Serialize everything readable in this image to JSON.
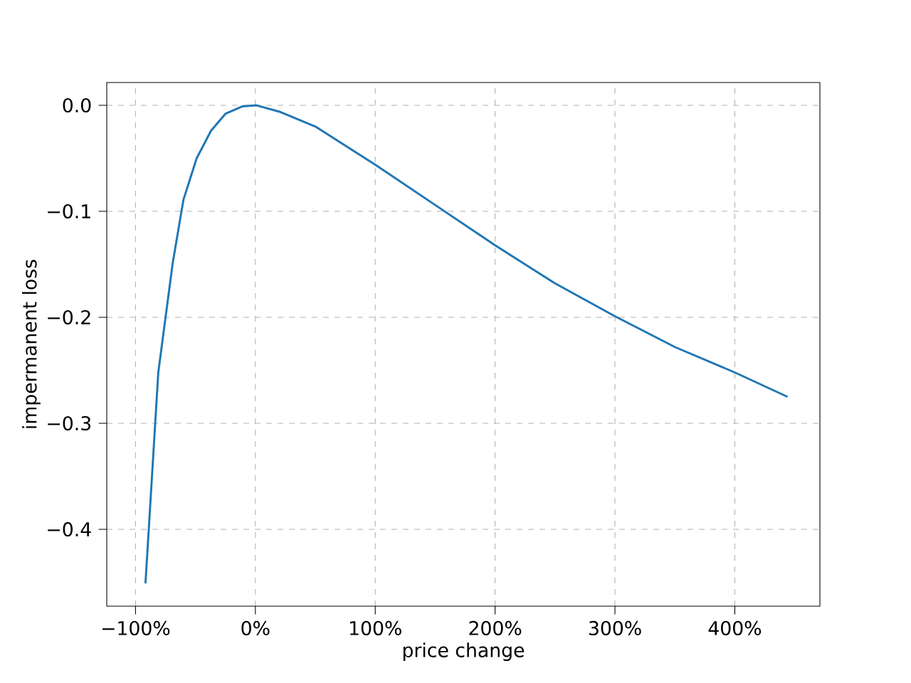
{
  "chart_data": {
    "type": "line",
    "xlabel": "price change",
    "ylabel": "impermanent loss",
    "x": [
      -91.7,
      -81,
      -69,
      -60,
      -49,
      -37,
      -25,
      -11,
      1,
      20,
      50,
      100,
      150,
      200,
      250,
      300,
      350,
      400,
      444
    ],
    "series": [
      {
        "color": "#1f77b4",
        "values": [
          -0.451,
          -0.252,
          -0.149,
          -0.089,
          -0.05,
          -0.024,
          -0.008,
          -0.001,
          0,
          -0.006,
          -0.02,
          -0.056,
          -0.094,
          -0.132,
          -0.168,
          -0.199,
          -0.228,
          -0.252,
          -0.275
        ]
      }
    ],
    "xlim": [
      -124,
      471
    ],
    "ylim": [
      -0.4725,
      0.0215
    ],
    "xticks": [
      {
        "value": -100,
        "label": "−100%"
      },
      {
        "value": 0,
        "label": "0%"
      },
      {
        "value": 100,
        "label": "100%"
      },
      {
        "value": 200,
        "label": "200%"
      },
      {
        "value": 300,
        "label": "300%"
      },
      {
        "value": 400,
        "label": "400%"
      }
    ],
    "yticks": [
      {
        "value": -0.4,
        "label": "−0.4"
      },
      {
        "value": -0.3,
        "label": "−0.3"
      },
      {
        "value": -0.2,
        "label": "−0.2"
      },
      {
        "value": -0.1,
        "label": "−0.1"
      },
      {
        "value": 0,
        "label": "0.0"
      }
    ],
    "grid": true,
    "marker": "none",
    "line_style": "solid"
  }
}
